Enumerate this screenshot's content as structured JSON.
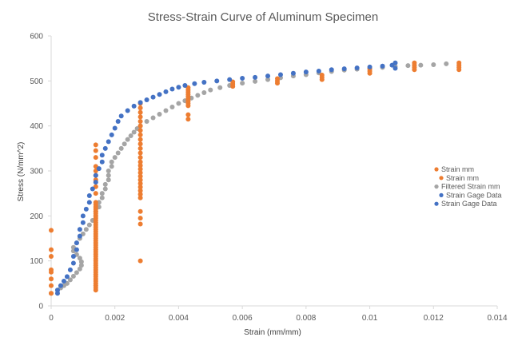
{
  "chart_data": {
    "type": "scatter",
    "title": "Stress-Strain Curve of Aluminum Specimen",
    "xlabel": "Strain (mm/mm)",
    "ylabel": "Stress (N/mm^2)",
    "xlim": [
      0,
      0.014
    ],
    "ylim": [
      0,
      600
    ],
    "x_ticks": [
      0,
      0.002,
      0.004,
      0.006,
      0.008,
      0.01,
      0.012,
      0.014
    ],
    "x_tick_labels": [
      "0",
      "0.002",
      "0.004",
      "0.006",
      "0.008",
      "0.01",
      "0.012",
      "0.014"
    ],
    "y_ticks": [
      0,
      100,
      200,
      300,
      400,
      500,
      600
    ],
    "y_tick_labels": [
      "0",
      "100",
      "200",
      "300",
      "400",
      "500",
      "600"
    ],
    "grid": false,
    "legend_position": "right",
    "series": [
      {
        "name": "Strain mm",
        "color": "#ED7D31",
        "points": [
          [
            0,
            28
          ],
          [
            0,
            45
          ],
          [
            0,
            60
          ],
          [
            0,
            75
          ],
          [
            0,
            80
          ],
          [
            0,
            110
          ],
          [
            0,
            125
          ],
          [
            0,
            168
          ],
          [
            0.0014,
            35
          ],
          [
            0.0014,
            40
          ],
          [
            0.0014,
            45
          ],
          [
            0.0014,
            50
          ],
          [
            0.0014,
            55
          ],
          [
            0.0014,
            60
          ],
          [
            0.0014,
            65
          ],
          [
            0.0014,
            70
          ],
          [
            0.0014,
            75
          ],
          [
            0.0014,
            80
          ],
          [
            0.0014,
            85
          ],
          [
            0.0014,
            90
          ],
          [
            0.0014,
            95
          ],
          [
            0.0014,
            100
          ],
          [
            0.0014,
            105
          ],
          [
            0.0014,
            110
          ],
          [
            0.0014,
            115
          ],
          [
            0.0014,
            120
          ],
          [
            0.0014,
            125
          ],
          [
            0.0014,
            130
          ],
          [
            0.0014,
            135
          ],
          [
            0.0014,
            140
          ],
          [
            0.0014,
            145
          ],
          [
            0.0014,
            150
          ],
          [
            0.0014,
            155
          ],
          [
            0.0014,
            160
          ],
          [
            0.0014,
            165
          ],
          [
            0.0014,
            170
          ],
          [
            0.0014,
            175
          ],
          [
            0.0014,
            180
          ],
          [
            0.0014,
            185
          ],
          [
            0.0014,
            190
          ],
          [
            0.0014,
            195
          ],
          [
            0.0014,
            200
          ],
          [
            0.0014,
            205
          ],
          [
            0.0014,
            210
          ],
          [
            0.0014,
            215
          ],
          [
            0.0014,
            220
          ],
          [
            0.0014,
            225
          ],
          [
            0.0014,
            230
          ],
          [
            0.0014,
            250
          ],
          [
            0.0014,
            265
          ],
          [
            0.0014,
            280
          ],
          [
            0.0014,
            290
          ],
          [
            0.0014,
            300
          ],
          [
            0.0014,
            310
          ],
          [
            0.0014,
            330
          ],
          [
            0.0014,
            345
          ],
          [
            0.0014,
            358
          ],
          [
            0.0028,
            100
          ],
          [
            0.0028,
            182
          ],
          [
            0.0028,
            195
          ],
          [
            0.0028,
            210
          ],
          [
            0.0028,
            240
          ],
          [
            0.0028,
            248
          ],
          [
            0.0028,
            256
          ],
          [
            0.0028,
            264
          ],
          [
            0.0028,
            272
          ],
          [
            0.0028,
            280
          ],
          [
            0.0028,
            288
          ],
          [
            0.0028,
            296
          ],
          [
            0.0028,
            304
          ],
          [
            0.0028,
            312
          ],
          [
            0.0028,
            320
          ],
          [
            0.0028,
            330
          ],
          [
            0.0028,
            340
          ],
          [
            0.0028,
            350
          ],
          [
            0.0028,
            360
          ],
          [
            0.0028,
            370
          ],
          [
            0.0028,
            380
          ],
          [
            0.0028,
            390
          ],
          [
            0.0028,
            400
          ],
          [
            0.0028,
            410
          ],
          [
            0.0028,
            420
          ],
          [
            0.0028,
            430
          ],
          [
            0.0028,
            440
          ],
          [
            0.0028,
            450
          ],
          [
            0.0043,
            415
          ],
          [
            0.0043,
            425
          ],
          [
            0.0043,
            445
          ],
          [
            0.0043,
            450
          ],
          [
            0.0043,
            455
          ],
          [
            0.0043,
            460
          ],
          [
            0.0043,
            465
          ],
          [
            0.0043,
            470
          ],
          [
            0.0043,
            475
          ],
          [
            0.0043,
            480
          ],
          [
            0.0043,
            485
          ],
          [
            0.0057,
            488
          ],
          [
            0.0057,
            493
          ],
          [
            0.0057,
            498
          ],
          [
            0.0071,
            495
          ],
          [
            0.0071,
            500
          ],
          [
            0.0071,
            505
          ],
          [
            0.0085,
            503
          ],
          [
            0.0085,
            508
          ],
          [
            0.0085,
            513
          ],
          [
            0.01,
            517
          ],
          [
            0.01,
            522
          ],
          [
            0.01,
            527
          ],
          [
            0.0114,
            525
          ],
          [
            0.0114,
            530
          ],
          [
            0.0114,
            535
          ],
          [
            0.0114,
            540
          ],
          [
            0.0128,
            525
          ],
          [
            0.0128,
            530
          ],
          [
            0.0128,
            535
          ],
          [
            0.0128,
            540
          ]
        ]
      },
      {
        "name": "Filtered Strain mm",
        "color": "#A5A5A5",
        "points": [
          [
            0,
            28
          ],
          [
            0.0002,
            35
          ],
          [
            0.0003,
            40
          ],
          [
            0.0004,
            45
          ],
          [
            0.0005,
            50
          ],
          [
            0.0006,
            58
          ],
          [
            0.0007,
            66
          ],
          [
            0.0008,
            74
          ],
          [
            0.0009,
            82
          ],
          [
            0.00095,
            90
          ],
          [
            0.00095,
            98
          ],
          [
            0.0009,
            106
          ],
          [
            0.0008,
            114
          ],
          [
            0.0007,
            122
          ],
          [
            0.0007,
            130
          ],
          [
            0.0008,
            140
          ],
          [
            0.0009,
            150
          ],
          [
            0.001,
            160
          ],
          [
            0.0011,
            170
          ],
          [
            0.0012,
            180
          ],
          [
            0.0013,
            190
          ],
          [
            0.0014,
            200
          ],
          [
            0.0014,
            210
          ],
          [
            0.0015,
            220
          ],
          [
            0.0015,
            230
          ],
          [
            0.0016,
            240
          ],
          [
            0.0016,
            250
          ],
          [
            0.0017,
            260
          ],
          [
            0.0017,
            270
          ],
          [
            0.0018,
            280
          ],
          [
            0.0018,
            290
          ],
          [
            0.0018,
            300
          ],
          [
            0.0019,
            310
          ],
          [
            0.0019,
            320
          ],
          [
            0.002,
            330
          ],
          [
            0.0021,
            340
          ],
          [
            0.0022,
            350
          ],
          [
            0.0023,
            360
          ],
          [
            0.0024,
            370
          ],
          [
            0.0025,
            378
          ],
          [
            0.0026,
            386
          ],
          [
            0.0027,
            394
          ],
          [
            0.0028,
            400
          ],
          [
            0.003,
            410
          ],
          [
            0.0032,
            418
          ],
          [
            0.0034,
            426
          ],
          [
            0.0036,
            434
          ],
          [
            0.0038,
            442
          ],
          [
            0.004,
            450
          ],
          [
            0.0042,
            456
          ],
          [
            0.0044,
            462
          ],
          [
            0.0046,
            468
          ],
          [
            0.0048,
            474
          ],
          [
            0.005,
            480
          ],
          [
            0.0053,
            485
          ],
          [
            0.0056,
            490
          ],
          [
            0.006,
            495
          ],
          [
            0.0064,
            499
          ],
          [
            0.0068,
            503
          ],
          [
            0.0072,
            507
          ],
          [
            0.0076,
            511
          ],
          [
            0.008,
            514
          ],
          [
            0.0084,
            518
          ],
          [
            0.0088,
            521
          ],
          [
            0.0092,
            524
          ],
          [
            0.0096,
            526
          ],
          [
            0.01,
            528
          ],
          [
            0.0104,
            530
          ],
          [
            0.0108,
            532
          ],
          [
            0.0112,
            534
          ],
          [
            0.0116,
            535
          ],
          [
            0.012,
            536
          ],
          [
            0.0124,
            538
          ]
        ]
      },
      {
        "name": "Strain Gage Data",
        "color": "#4472C4",
        "points": [
          [
            0.0002,
            28
          ],
          [
            0.0002,
            35
          ],
          [
            0.0003,
            45
          ],
          [
            0.0004,
            55
          ],
          [
            0.0005,
            65
          ],
          [
            0.0006,
            80
          ],
          [
            0.0007,
            95
          ],
          [
            0.0007,
            110
          ],
          [
            0.0008,
            125
          ],
          [
            0.0008,
            140
          ],
          [
            0.0009,
            155
          ],
          [
            0.0009,
            170
          ],
          [
            0.001,
            185
          ],
          [
            0.001,
            200
          ],
          [
            0.0011,
            215
          ],
          [
            0.0012,
            230
          ],
          [
            0.0012,
            245
          ],
          [
            0.0013,
            260
          ],
          [
            0.0014,
            275
          ],
          [
            0.0014,
            290
          ],
          [
            0.0015,
            305
          ],
          [
            0.0016,
            320
          ],
          [
            0.0016,
            335
          ],
          [
            0.0017,
            350
          ],
          [
            0.0018,
            365
          ],
          [
            0.0019,
            380
          ],
          [
            0.002,
            395
          ],
          [
            0.0021,
            410
          ],
          [
            0.0022,
            422
          ],
          [
            0.0024,
            434
          ],
          [
            0.0026,
            444
          ],
          [
            0.0028,
            452
          ],
          [
            0.003,
            458
          ],
          [
            0.0032,
            464
          ],
          [
            0.0034,
            470
          ],
          [
            0.0036,
            476
          ],
          [
            0.0038,
            482
          ],
          [
            0.004,
            486
          ],
          [
            0.0042,
            490
          ],
          [
            0.0045,
            494
          ],
          [
            0.0048,
            497
          ],
          [
            0.0052,
            500
          ],
          [
            0.0056,
            503
          ],
          [
            0.006,
            506
          ],
          [
            0.0064,
            508
          ],
          [
            0.0068,
            511
          ],
          [
            0.0072,
            514
          ],
          [
            0.0076,
            517
          ],
          [
            0.008,
            520
          ],
          [
            0.0084,
            522
          ],
          [
            0.0088,
            525
          ],
          [
            0.0092,
            527
          ],
          [
            0.0096,
            529
          ],
          [
            0.01,
            531
          ],
          [
            0.0104,
            533
          ],
          [
            0.0107,
            535
          ],
          [
            0.0108,
            528
          ],
          [
            0.0108,
            540
          ]
        ]
      }
    ],
    "legend_entries": [
      "Strain mm",
      "Strain mm",
      "Filtered Strain mm",
      "Strain Gage Data",
      "Strain Gage Data"
    ]
  }
}
